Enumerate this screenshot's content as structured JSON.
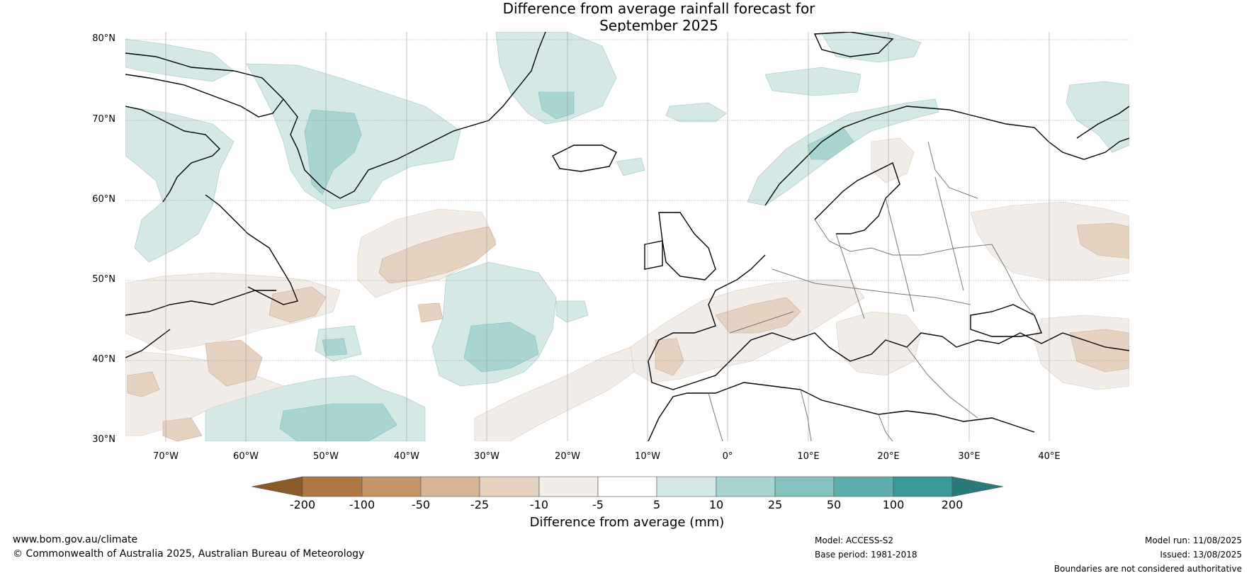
{
  "title": {
    "line1": "Difference from average rainfall forecast for",
    "line2": "September 2025"
  },
  "map": {
    "latitude_labels": [
      "80°N",
      "70°N",
      "60°N",
      "50°N",
      "40°N",
      "30°N"
    ],
    "longitude_labels": [
      "70°W",
      "60°W",
      "50°W",
      "40°W",
      "30°W",
      "20°W",
      "10°W",
      "0°",
      "10°E",
      "20°E",
      "30°E",
      "40°E"
    ],
    "extent": {
      "lon_min": -75,
      "lon_max": 50,
      "lat_min": 30,
      "lat_max": 81
    },
    "gridlines": true
  },
  "colorbar": {
    "tick_labels": [
      "-200",
      "-100",
      "-50",
      "-25",
      "-10",
      "-5",
      "5",
      "10",
      "25",
      "50",
      "100",
      "200"
    ],
    "colors": [
      "#8a5a2a",
      "#b07842",
      "#c49468",
      "#d6b494",
      "#e6d2c0",
      "#f2ede8",
      "#ffffff",
      "#d4e8e6",
      "#a8d4d2",
      "#84c2c0",
      "#5eaeac",
      "#3a9a98",
      "#2a7a78"
    ],
    "title": "Difference from average (mm)"
  },
  "footer": {
    "website": "www.bom.gov.au/climate",
    "copyright": "© Commonwealth of Australia 2025, Australian Bureau of Meteorology",
    "model": "Model: ACCESS-S2",
    "base_period": "Base period: 1981-2018",
    "model_run": "Model run: 11/08/2025",
    "issued": "Issued: 13/08/2025",
    "disclaimer": "Boundaries are not considered authoritative"
  }
}
